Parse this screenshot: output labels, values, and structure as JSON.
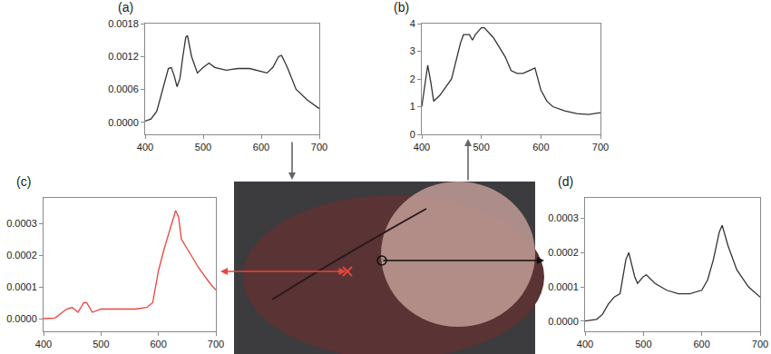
{
  "chart_data": [
    {
      "type": "line",
      "title": "(a)",
      "color": "#333333",
      "grid": false,
      "x": [
        400,
        410,
        420,
        430,
        440,
        445,
        450,
        455,
        460,
        465,
        470,
        473,
        480,
        490,
        500,
        510,
        520,
        540,
        560,
        580,
        600,
        610,
        620,
        630,
        635,
        645,
        660,
        680,
        700
      ],
      "values": [
        2e-05,
        6e-05,
        0.0002,
        0.0006,
        0.00098,
        0.001,
        0.00085,
        0.00065,
        0.0008,
        0.0012,
        0.00155,
        0.00158,
        0.0012,
        0.0009,
        0.001,
        0.00108,
        0.001,
        0.00095,
        0.00098,
        0.00098,
        0.00093,
        0.0009,
        0.001,
        0.0012,
        0.00122,
        0.001,
        0.0006,
        0.0004,
        0.00025
      ],
      "xlim": [
        400,
        700
      ],
      "xticks": [
        400,
        500,
        600,
        700
      ],
      "ylim": [
        -0.00022,
        0.0018
      ],
      "yticks": [
        {
          "value": 0,
          "label": "0.0000"
        },
        0.0006,
        0.0012,
        0.0018
      ]
    },
    {
      "type": "line",
      "title": "(b)",
      "color": "#333333",
      "grid": false,
      "x": [
        400,
        405,
        410,
        415,
        420,
        430,
        450,
        465,
        470,
        480,
        485,
        490,
        500,
        505,
        520,
        540,
        550,
        560,
        570,
        580,
        590,
        600,
        610,
        620,
        640,
        660,
        680,
        700
      ],
      "values": [
        1.0,
        1.8,
        2.5,
        1.9,
        1.2,
        1.4,
        2.0,
        3.3,
        3.6,
        3.6,
        3.4,
        3.6,
        3.85,
        3.85,
        3.5,
        2.8,
        2.3,
        2.2,
        2.2,
        2.3,
        2.4,
        1.6,
        1.2,
        1.0,
        0.85,
        0.75,
        0.72,
        0.78
      ],
      "xlim": [
        400,
        700
      ],
      "xticks": [
        400,
        500,
        600,
        700
      ],
      "ylim": [
        0,
        4
      ],
      "yticks": [
        0,
        1,
        2,
        3,
        4
      ]
    },
    {
      "type": "line",
      "title": "(c)",
      "color": "#e8453c",
      "grid": false,
      "x": [
        400,
        420,
        440,
        450,
        460,
        470,
        475,
        485,
        500,
        520,
        540,
        560,
        580,
        590,
        600,
        610,
        620,
        630,
        635,
        640,
        650,
        670,
        690,
        700
      ],
      "values": [
        0.0,
        2e-06,
        3e-05,
        3.5e-05,
        2e-05,
        5e-05,
        5e-05,
        2e-05,
        3e-05,
        3e-05,
        3e-05,
        3e-05,
        3.5e-05,
        5e-05,
        0.00015,
        0.00022,
        0.00028,
        0.00034,
        0.00032,
        0.00025,
        0.00022,
        0.00016,
        0.00011,
        9e-05
      ],
      "xlim": [
        400,
        700
      ],
      "xticks": [
        400,
        500,
        600,
        700
      ],
      "ylim": [
        -4e-05,
        0.00038
      ],
      "yticks": [
        {
          "value": 0,
          "label": "0.0000"
        },
        0.0001,
        0.0002,
        0.0003
      ]
    },
    {
      "type": "line",
      "title": "(d)",
      "color": "#333333",
      "grid": false,
      "x": [
        400,
        420,
        430,
        440,
        450,
        460,
        470,
        475,
        485,
        490,
        500,
        505,
        520,
        540,
        560,
        580,
        600,
        610,
        620,
        630,
        635,
        645,
        660,
        680,
        700
      ],
      "values": [
        0.0,
        5e-06,
        2e-05,
        5e-05,
        7e-05,
        8e-05,
        0.00018,
        0.0002,
        0.00013,
        0.00011,
        0.00013,
        0.000135,
        0.00011,
        9e-05,
        8e-05,
        8e-05,
        9e-05,
        0.00012,
        0.00018,
        0.00026,
        0.00028,
        0.00022,
        0.00015,
        0.0001,
        7e-05
      ],
      "xlim": [
        400,
        700
      ],
      "xticks": [
        400,
        500,
        600,
        700
      ],
      "ylim": [
        -3e-05,
        0.00036
      ],
      "yticks": [
        {
          "value": 0,
          "label": "0.0000"
        },
        0.0001,
        0.0002,
        0.0003
      ]
    }
  ]
}
